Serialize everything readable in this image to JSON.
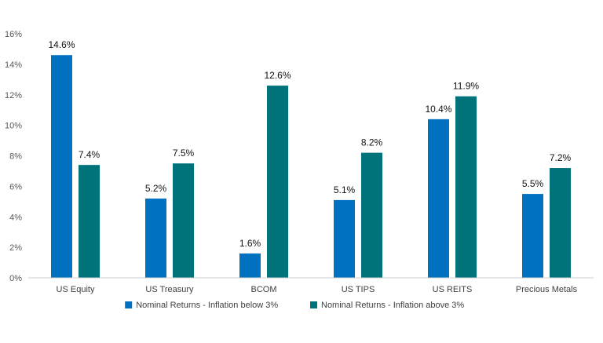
{
  "chart_data": {
    "type": "bar",
    "title": "",
    "xlabel": "",
    "ylabel": "",
    "categories": [
      "US Equity",
      "US Treasury",
      "BCOM",
      "US TIPS",
      "US REITS",
      "Precious Metals"
    ],
    "series": [
      {
        "name": "Nominal Returns - Inflation below 3%",
        "color": "#0070C0",
        "values": [
          14.6,
          5.2,
          1.6,
          5.1,
          10.4,
          5.5
        ],
        "labels": [
          "14.6%",
          "5.2%",
          "1.6%",
          "5.1%",
          "10.4%",
          "5.5%"
        ]
      },
      {
        "name": "Nominal Returns - Inflation above 3%",
        "color": "#00727A",
        "values": [
          7.4,
          7.5,
          12.6,
          8.2,
          11.9,
          7.2
        ],
        "labels": [
          "7.4%",
          "7.5%",
          "12.6%",
          "8.2%",
          "11.9%",
          "7.2%"
        ]
      }
    ],
    "ylim": [
      0,
      16
    ],
    "yticks": [
      0,
      2,
      4,
      6,
      8,
      10,
      12,
      14,
      16
    ],
    "ytick_labels": [
      "0%",
      "2%",
      "4%",
      "6%",
      "8%",
      "10%",
      "12%",
      "14%",
      "16%"
    ],
    "grid": false,
    "legend_position": "bottom-center"
  }
}
